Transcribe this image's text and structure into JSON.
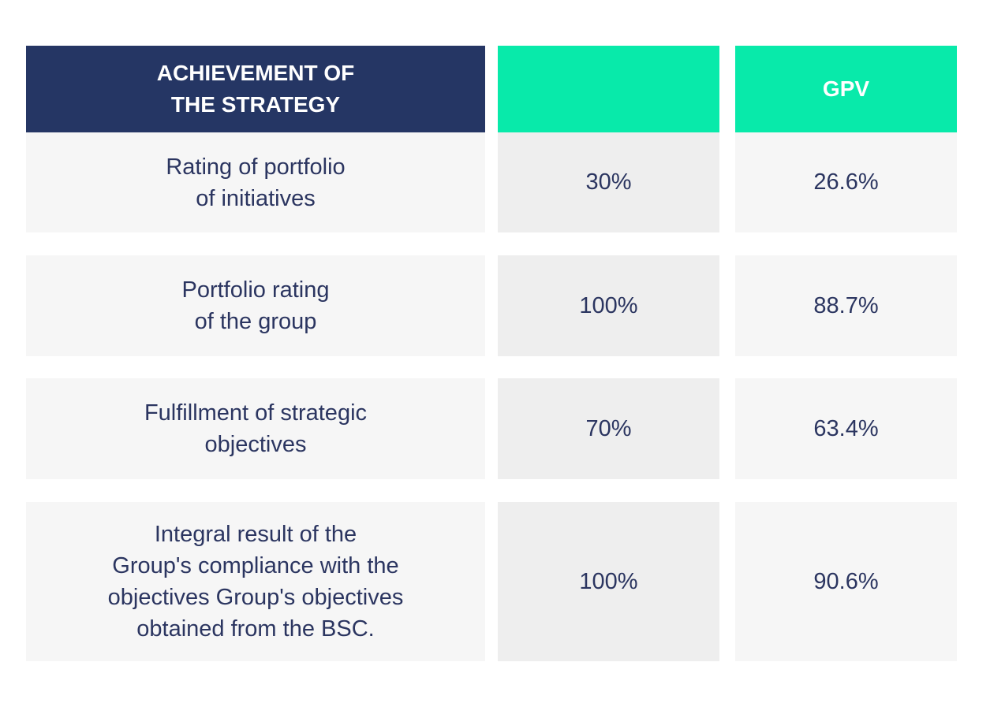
{
  "header": {
    "label": "ACHIEVEMENT OF\nTHE STRATEGY",
    "weight": "",
    "gpv": "GPV"
  },
  "rows": [
    {
      "label": "Rating of portfolio\nof initiatives",
      "weight": "30%",
      "gpv": "26.6%"
    },
    {
      "label": "Portfolio rating\nof the group",
      "weight": "100%",
      "gpv": "88.7%"
    },
    {
      "label": "Fulfillment of strategic\nobjectives",
      "weight": "70%",
      "gpv": "63.4%"
    },
    {
      "label": "Integral result of the\nGroup's compliance with the\nobjectives Group's objectives\nobtained from the BSC.",
      "weight": "100%",
      "gpv": "90.6%"
    }
  ],
  "colors": {
    "header_dark": "#253664",
    "header_accent": "#08eaaa",
    "cell_light": "#f6f6f6",
    "cell_mid": "#eeeeee",
    "text": "#2b3560"
  }
}
